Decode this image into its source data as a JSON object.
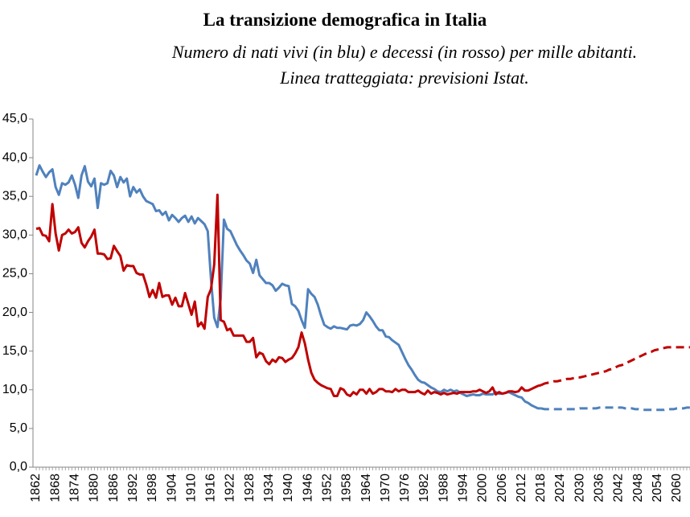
{
  "chart_data": {
    "type": "line",
    "title": "La transizione demografica in Italia",
    "subtitle": [
      "Numero di nati vivi (in blu) e decessi (in rosso) per mille abitanti.",
      "Linea tratteggiata: previsioni Istat."
    ],
    "x": [
      1862,
      1863,
      1864,
      1865,
      1866,
      1867,
      1868,
      1869,
      1870,
      1871,
      1872,
      1873,
      1874,
      1875,
      1876,
      1877,
      1878,
      1879,
      1880,
      1881,
      1882,
      1883,
      1884,
      1885,
      1886,
      1887,
      1888,
      1889,
      1890,
      1891,
      1892,
      1893,
      1894,
      1895,
      1896,
      1897,
      1898,
      1899,
      1900,
      1901,
      1902,
      1903,
      1904,
      1905,
      1906,
      1907,
      1908,
      1909,
      1910,
      1911,
      1912,
      1913,
      1914,
      1915,
      1916,
      1917,
      1918,
      1919,
      1920,
      1921,
      1922,
      1923,
      1924,
      1925,
      1926,
      1927,
      1928,
      1929,
      1930,
      1931,
      1932,
      1933,
      1934,
      1935,
      1936,
      1937,
      1938,
      1939,
      1940,
      1941,
      1942,
      1943,
      1944,
      1945,
      1946,
      1947,
      1948,
      1949,
      1950,
      1951,
      1952,
      1953,
      1954,
      1955,
      1956,
      1957,
      1958,
      1959,
      1960,
      1961,
      1962,
      1963,
      1964,
      1965,
      1966,
      1967,
      1968,
      1969,
      1970,
      1971,
      1972,
      1973,
      1974,
      1975,
      1976,
      1977,
      1978,
      1979,
      1980,
      1981,
      1982,
      1983,
      1984,
      1985,
      1986,
      1987,
      1988,
      1989,
      1990,
      1991,
      1992,
      1993,
      1994,
      1995,
      1996,
      1997,
      1998,
      1999,
      2000,
      2001,
      2002,
      2003,
      2004,
      2005,
      2006,
      2007,
      2008,
      2009,
      2010,
      2011,
      2012,
      2013,
      2014,
      2015,
      2016,
      2017,
      2018,
      2019,
      2020,
      2021,
      2022,
      2023,
      2024,
      2025,
      2026,
      2027,
      2028,
      2029,
      2030,
      2031,
      2032,
      2033,
      2034,
      2035,
      2036,
      2037,
      2038,
      2039,
      2040,
      2041,
      2042,
      2043,
      2044,
      2045,
      2046,
      2047,
      2048,
      2049,
      2050,
      2051,
      2052,
      2053,
      2054,
      2055,
      2056,
      2057,
      2058,
      2059,
      2060,
      2061,
      2062,
      2063,
      2064
    ],
    "xlim": [
      1861,
      2064
    ],
    "xticks": [
      1862,
      1868,
      1874,
      1880,
      1886,
      1892,
      1898,
      1904,
      1910,
      1916,
      1922,
      1928,
      1934,
      1940,
      1946,
      1952,
      1958,
      1964,
      1970,
      1976,
      1982,
      1988,
      1994,
      2000,
      2006,
      2012,
      2018,
      2024,
      2030,
      2036,
      2042,
      2048,
      2054,
      2060
    ],
    "ylim": [
      0,
      45
    ],
    "yticks": [
      {
        "value": 0,
        "label": "0,0"
      },
      {
        "value": 5,
        "label": "5,0"
      },
      {
        "value": 10,
        "label": "10,0"
      },
      {
        "value": 15,
        "label": "15,0"
      },
      {
        "value": 20,
        "label": "20,0"
      },
      {
        "value": 25,
        "label": "25,0"
      },
      {
        "value": 30,
        "label": "30,0"
      },
      {
        "value": 35,
        "label": "35,0"
      },
      {
        "value": 40,
        "label": "40,0"
      },
      {
        "value": 45,
        "label": "45,0"
      }
    ],
    "grid": false,
    "series": [
      {
        "color": "#4f81bd",
        "dashed": false,
        "values": [
          37.7,
          39.0,
          38.2,
          37.5,
          38.1,
          38.5,
          36.2,
          35.2,
          36.7,
          36.5,
          36.8,
          37.7,
          36.5,
          34.8,
          37.7,
          38.9,
          36.9,
          36.3,
          37.3,
          33.5,
          36.7,
          36.5,
          36.7,
          38.3,
          37.7,
          36.2,
          37.5,
          36.8,
          37.3,
          35.0,
          36.2,
          35.5,
          35.9,
          35.0,
          34.4,
          34.2,
          34.0,
          33.1,
          33.2,
          32.6,
          33.0,
          31.9,
          32.6,
          32.2,
          31.7,
          32.2,
          32.5,
          31.7,
          32.4,
          31.5,
          32.2,
          31.8,
          31.4,
          30.5,
          24.3,
          19.3,
          18.1,
          21.8,
          32.0,
          30.8,
          30.5,
          29.6,
          28.7,
          28.0,
          27.4,
          26.7,
          26.3,
          25.1,
          26.8,
          24.8,
          24.3,
          23.8,
          23.8,
          23.5,
          22.8,
          23.2,
          23.7,
          23.5,
          23.4,
          21.1,
          20.8,
          20.2,
          19.0,
          18.0,
          23.0,
          22.4,
          22.0,
          21.0,
          19.6,
          18.4,
          18.1,
          17.9,
          18.2,
          18.0,
          18.0,
          17.9,
          17.8,
          18.3,
          18.4,
          18.3,
          18.5,
          19.0,
          20.0,
          19.5,
          18.9,
          18.2,
          17.7,
          17.7,
          16.9,
          16.8,
          16.4,
          16.1,
          15.8,
          14.9,
          14.0,
          13.2,
          12.6,
          11.9,
          11.3,
          11.0,
          10.9,
          10.6,
          10.3,
          10.1,
          9.8,
          9.7,
          10.0,
          9.8,
          10.0,
          9.8,
          9.9,
          9.6,
          9.4,
          9.2,
          9.3,
          9.4,
          9.3,
          9.3,
          9.5,
          9.4,
          9.4,
          9.4,
          9.7,
          9.5,
          9.5,
          9.6,
          9.7,
          9.5,
          9.3,
          9.1,
          9.0,
          8.5,
          8.3,
          8.0,
          7.8,
          7.6,
          7.6,
          null,
          null,
          null,
          null,
          null,
          null,
          null,
          null,
          null,
          null,
          null,
          null,
          null,
          null,
          null,
          null,
          null,
          null,
          null,
          null,
          null,
          null,
          null,
          null,
          null,
          null,
          null,
          null,
          null,
          null,
          null,
          null,
          null,
          null,
          null,
          null,
          null,
          null,
          null,
          null,
          null,
          null,
          null,
          null,
          null,
          null
        ]
      },
      {
        "color": "#c00000",
        "dashed": false,
        "values": [
          30.8,
          30.9,
          30.0,
          29.9,
          29.2,
          34.0,
          30.2,
          28.0,
          30.0,
          30.2,
          30.7,
          30.2,
          30.4,
          31.0,
          29.0,
          28.4,
          29.2,
          29.8,
          30.7,
          27.6,
          27.6,
          27.5,
          26.9,
          27.0,
          28.6,
          27.9,
          27.3,
          25.4,
          26.1,
          26.0,
          26.0,
          25.1,
          24.9,
          24.9,
          23.6,
          22.0,
          22.9,
          21.9,
          23.8,
          22.0,
          22.2,
          22.2,
          21.0,
          21.9,
          20.8,
          20.8,
          22.5,
          21.1,
          19.7,
          21.4,
          18.2,
          18.7,
          17.9,
          22.0,
          23.0,
          26.2,
          35.2,
          19.0,
          18.8,
          17.7,
          17.9,
          17.0,
          17.0,
          17.0,
          17.0,
          16.2,
          16.2,
          16.7,
          14.2,
          14.8,
          14.6,
          13.7,
          13.3,
          13.9,
          13.6,
          14.2,
          14.1,
          13.6,
          13.9,
          14.1,
          14.7,
          15.5,
          17.4,
          16.0,
          13.9,
          12.2,
          11.3,
          10.9,
          10.6,
          10.4,
          10.2,
          10.1,
          9.2,
          9.2,
          10.2,
          10.0,
          9.4,
          9.2,
          9.7,
          9.4,
          10.0,
          10.0,
          9.5,
          10.1,
          9.5,
          9.7,
          10.1,
          10.1,
          9.8,
          9.8,
          9.7,
          10.1,
          9.8,
          10.0,
          10.0,
          9.7,
          9.7,
          9.7,
          9.9,
          9.6,
          9.4,
          9.9,
          9.5,
          9.7,
          9.6,
          9.4,
          9.6,
          9.4,
          9.5,
          9.6,
          9.5,
          9.7,
          9.7,
          9.7,
          9.7,
          9.8,
          9.8,
          10.0,
          9.8,
          9.6,
          9.8,
          10.3,
          9.4,
          9.7,
          9.5,
          9.6,
          9.8,
          9.8,
          9.7,
          9.8,
          10.3,
          9.9,
          9.9,
          10.1,
          10.3,
          10.5,
          10.6,
          null,
          null,
          null,
          null,
          null,
          null,
          null,
          null,
          null,
          null,
          null,
          null,
          null,
          null,
          null,
          null,
          null,
          null,
          null,
          null,
          null,
          null,
          null,
          null,
          null,
          null,
          null,
          null,
          null,
          null,
          null,
          null,
          null,
          null,
          null,
          null,
          null,
          null,
          null,
          null,
          null,
          null,
          null,
          null,
          null,
          null
        ]
      },
      {
        "color": "#4f81bd",
        "dashed": true,
        "values": [
          null,
          null,
          null,
          null,
          null,
          null,
          null,
          null,
          null,
          null,
          null,
          null,
          null,
          null,
          null,
          null,
          null,
          null,
          null,
          null,
          null,
          null,
          null,
          null,
          null,
          null,
          null,
          null,
          null,
          null,
          null,
          null,
          null,
          null,
          null,
          null,
          null,
          null,
          null,
          null,
          null,
          null,
          null,
          null,
          null,
          null,
          null,
          null,
          null,
          null,
          null,
          null,
          null,
          null,
          null,
          null,
          null,
          null,
          null,
          null,
          null,
          null,
          null,
          null,
          null,
          null,
          null,
          null,
          null,
          null,
          null,
          null,
          null,
          null,
          null,
          null,
          null,
          null,
          null,
          null,
          null,
          null,
          null,
          null,
          null,
          null,
          null,
          null,
          null,
          null,
          null,
          null,
          null,
          null,
          null,
          null,
          null,
          null,
          null,
          null,
          null,
          null,
          null,
          null,
          null,
          null,
          null,
          null,
          null,
          null,
          null,
          null,
          null,
          null,
          null,
          null,
          null,
          null,
          null,
          null,
          null,
          null,
          null,
          null,
          null,
          null,
          null,
          null,
          null,
          null,
          null,
          null,
          null,
          null,
          null,
          null,
          null,
          null,
          null,
          null,
          null,
          null,
          null,
          null,
          null,
          null,
          null,
          null,
          null,
          null,
          null,
          null,
          null,
          null,
          null,
          null,
          7.6,
          7.5,
          7.5,
          7.5,
          7.5,
          7.5,
          7.5,
          7.5,
          7.5,
          7.5,
          7.5,
          7.5,
          7.6,
          7.6,
          7.6,
          7.6,
          7.6,
          7.6,
          7.7,
          7.7,
          7.7,
          7.7,
          7.7,
          7.7,
          7.7,
          7.7,
          7.6,
          7.6,
          7.6,
          7.5,
          7.5,
          7.4,
          7.4,
          7.4,
          7.4,
          7.4,
          7.4,
          7.4,
          7.4,
          7.5,
          7.5,
          7.5,
          7.6,
          7.6,
          7.6,
          7.7,
          7.7
        ]
      },
      {
        "color": "#c00000",
        "dashed": true,
        "values": [
          null,
          null,
          null,
          null,
          null,
          null,
          null,
          null,
          null,
          null,
          null,
          null,
          null,
          null,
          null,
          null,
          null,
          null,
          null,
          null,
          null,
          null,
          null,
          null,
          null,
          null,
          null,
          null,
          null,
          null,
          null,
          null,
          null,
          null,
          null,
          null,
          null,
          null,
          null,
          null,
          null,
          null,
          null,
          null,
          null,
          null,
          null,
          null,
          null,
          null,
          null,
          null,
          null,
          null,
          null,
          null,
          null,
          null,
          null,
          null,
          null,
          null,
          null,
          null,
          null,
          null,
          null,
          null,
          null,
          null,
          null,
          null,
          null,
          null,
          null,
          null,
          null,
          null,
          null,
          null,
          null,
          null,
          null,
          null,
          null,
          null,
          null,
          null,
          null,
          null,
          null,
          null,
          null,
          null,
          null,
          null,
          null,
          null,
          null,
          null,
          null,
          null,
          null,
          null,
          null,
          null,
          null,
          null,
          null,
          null,
          null,
          null,
          null,
          null,
          null,
          null,
          null,
          null,
          null,
          null,
          null,
          null,
          null,
          null,
          null,
          null,
          null,
          null,
          null,
          null,
          null,
          null,
          null,
          null,
          null,
          null,
          null,
          null,
          null,
          null,
          null,
          null,
          null,
          null,
          null,
          null,
          null,
          null,
          null,
          null,
          null,
          null,
          null,
          null,
          null,
          null,
          10.6,
          10.8,
          10.9,
          11.0,
          11.1,
          11.1,
          11.2,
          11.3,
          11.4,
          11.4,
          11.5,
          11.6,
          11.6,
          11.7,
          11.8,
          11.9,
          12.0,
          12.1,
          12.2,
          12.3,
          12.4,
          12.6,
          12.7,
          12.9,
          13.1,
          13.2,
          13.4,
          13.6,
          13.8,
          14.0,
          14.2,
          14.4,
          14.6,
          14.8,
          14.9,
          15.1,
          15.2,
          15.3,
          15.4,
          15.5,
          15.5,
          15.5,
          15.5,
          15.5,
          15.5,
          15.5,
          15.5
        ]
      }
    ]
  }
}
